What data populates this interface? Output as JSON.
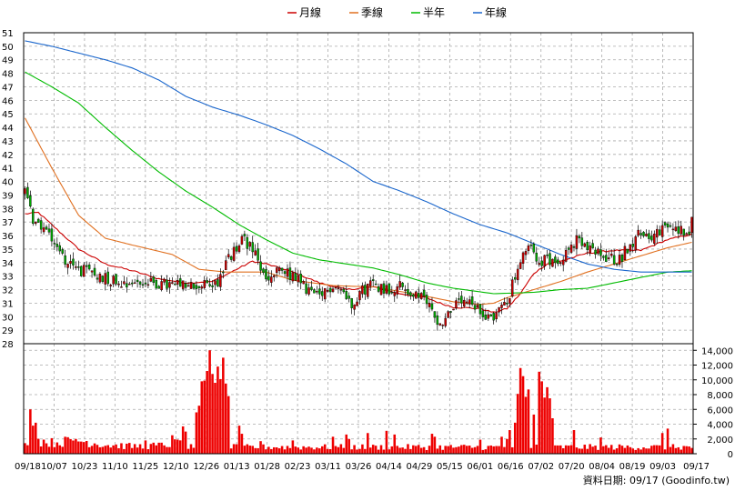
{
  "chart_data": {
    "type": "candlestick",
    "legend": {
      "placement": "top-center",
      "entries": [
        {
          "key": "ma_month",
          "label": "月線",
          "color": "#cc0000"
        },
        {
          "key": "ma_quarter",
          "label": "季線",
          "color": "#e07020"
        },
        {
          "key": "ma_half",
          "label": "半年",
          "color": "#00bb00"
        },
        {
          "key": "ma_year",
          "label": "年線",
          "color": "#1a66cc"
        }
      ]
    },
    "colors": {
      "up": "#cc0000",
      "down": "#00aa00",
      "volume": "#ee0000",
      "grid": "#aaaaaa"
    },
    "price_axis": {
      "min": 28,
      "max": 51,
      "ticks": [
        28,
        29,
        30,
        31,
        32,
        33,
        34,
        35,
        36,
        37,
        38,
        39,
        40,
        41,
        42,
        43,
        44,
        45,
        46,
        47,
        48,
        49,
        50,
        51
      ]
    },
    "volume_axis": {
      "min": 0,
      "max": 14000,
      "ticks": [
        0,
        2000,
        4000,
        6000,
        8000,
        10000,
        12000,
        14000
      ],
      "tick_labels": [
        "0",
        "2,000",
        "4,000",
        "6,000",
        "8,000",
        "10,000",
        "12,000",
        "14,000"
      ]
    },
    "x_tick_labels": [
      "09/18",
      "10/07",
      "10/23",
      "11/10",
      "11/25",
      "12/10",
      "12/26",
      "01/13",
      "01/28",
      "02/23",
      "03/11",
      "03/26",
      "04/14",
      "04/29",
      "05/15",
      "06/01",
      "06/16",
      "07/02",
      "07/20",
      "08/04",
      "08/19",
      "09/03",
      "09/17"
    ],
    "n_sessions": 250,
    "price_keypoints": [
      [
        0,
        39.2
      ],
      [
        3,
        37.2
      ],
      [
        10,
        36.0
      ],
      [
        14,
        34.5
      ],
      [
        18,
        33.6
      ],
      [
        25,
        33.2
      ],
      [
        35,
        32.6
      ],
      [
        45,
        32.5
      ],
      [
        55,
        32.3
      ],
      [
        65,
        32.2
      ],
      [
        72,
        32.6
      ],
      [
        75,
        34.0
      ],
      [
        80,
        35.3
      ],
      [
        82,
        35.8
      ],
      [
        86,
        34.5
      ],
      [
        90,
        32.6
      ],
      [
        95,
        33.4
      ],
      [
        100,
        33.0
      ],
      [
        105,
        32.1
      ],
      [
        110,
        31.3
      ],
      [
        115,
        32.4
      ],
      [
        118,
        32.0
      ],
      [
        122,
        31.0
      ],
      [
        125,
        31.8
      ],
      [
        130,
        32.5
      ],
      [
        135,
        32.0
      ],
      [
        140,
        32.3
      ],
      [
        145,
        31.6
      ],
      [
        150,
        31.2
      ],
      [
        155,
        29.4
      ],
      [
        160,
        30.8
      ],
      [
        165,
        31.0
      ],
      [
        170,
        30.3
      ],
      [
        175,
        30.0
      ],
      [
        180,
        31.2
      ],
      [
        184,
        33.5
      ],
      [
        188,
        35.2
      ],
      [
        192,
        34.2
      ],
      [
        197,
        34.1
      ],
      [
        202,
        34.7
      ],
      [
        206,
        35.6
      ],
      [
        210,
        35.0
      ],
      [
        214,
        34.6
      ],
      [
        218,
        34.3
      ],
      [
        222,
        34.2
      ],
      [
        226,
        35.4
      ],
      [
        230,
        36.2
      ],
      [
        235,
        36.0
      ],
      [
        240,
        36.6
      ],
      [
        245,
        36.4
      ],
      [
        248,
        36.5
      ],
      [
        249,
        37.0
      ]
    ],
    "volume_keypoints": [
      [
        0,
        2100
      ],
      [
        10,
        1500
      ],
      [
        20,
        1800
      ],
      [
        30,
        1200
      ],
      [
        40,
        1000
      ],
      [
        50,
        1100
      ],
      [
        58,
        1500
      ],
      [
        60,
        1200
      ],
      [
        62,
        900
      ],
      [
        70,
        900
      ]
    ],
    "volume_spikes": [
      [
        2,
        6000
      ],
      [
        3,
        3800
      ],
      [
        4,
        4200
      ],
      [
        19,
        2000
      ],
      [
        45,
        1800
      ],
      [
        55,
        2500
      ],
      [
        59,
        3700
      ],
      [
        60,
        3000
      ],
      [
        64,
        5600
      ],
      [
        65,
        6500
      ],
      [
        66,
        9800
      ],
      [
        67,
        9900
      ],
      [
        68,
        11200
      ],
      [
        69,
        14000
      ],
      [
        70,
        10800
      ],
      [
        71,
        9600
      ],
      [
        72,
        11800
      ],
      [
        73,
        10100
      ],
      [
        74,
        13000
      ],
      [
        75,
        9500
      ],
      [
        76,
        7800
      ],
      [
        80,
        3800
      ],
      [
        81,
        2700
      ],
      [
        88,
        1700
      ],
      [
        100,
        1800
      ],
      [
        115,
        2300
      ],
      [
        120,
        2600
      ],
      [
        121,
        2000
      ],
      [
        128,
        2800
      ],
      [
        135,
        3100
      ],
      [
        138,
        2600
      ],
      [
        152,
        2700
      ],
      [
        153,
        2300
      ],
      [
        170,
        1900
      ],
      [
        178,
        2300
      ],
      [
        180,
        2000
      ],
      [
        181,
        3200
      ],
      [
        183,
        4200
      ],
      [
        184,
        8100
      ],
      [
        185,
        11600
      ],
      [
        186,
        10500
      ],
      [
        187,
        7700
      ],
      [
        188,
        8700
      ],
      [
        190,
        5300
      ],
      [
        192,
        11100
      ],
      [
        193,
        9800
      ],
      [
        194,
        7600
      ],
      [
        195,
        9000
      ],
      [
        196,
        7500
      ],
      [
        197,
        4800
      ],
      [
        205,
        3200
      ],
      [
        215,
        2200
      ],
      [
        238,
        2800
      ],
      [
        240,
        3400
      ]
    ],
    "ma_series": [
      {
        "key": "ma_month",
        "keypoints": [
          [
            0,
            37.6
          ],
          [
            5,
            37.7
          ],
          [
            10,
            36.8
          ],
          [
            20,
            35.0
          ],
          [
            30,
            33.9
          ],
          [
            40,
            33.4
          ],
          [
            50,
            32.8
          ],
          [
            60,
            32.5
          ],
          [
            70,
            32.6
          ],
          [
            75,
            33.1
          ],
          [
            80,
            33.6
          ],
          [
            85,
            34.1
          ],
          [
            90,
            33.9
          ],
          [
            100,
            33.3
          ],
          [
            110,
            32.5
          ],
          [
            120,
            32.0
          ],
          [
            130,
            32.2
          ],
          [
            140,
            31.7
          ],
          [
            150,
            31.4
          ],
          [
            155,
            31.0
          ],
          [
            160,
            30.7
          ],
          [
            170,
            30.6
          ],
          [
            175,
            30.3
          ],
          [
            180,
            30.6
          ],
          [
            185,
            31.7
          ],
          [
            190,
            33.2
          ],
          [
            195,
            33.9
          ],
          [
            200,
            34.1
          ],
          [
            210,
            34.7
          ],
          [
            220,
            34.9
          ],
          [
            230,
            34.9
          ],
          [
            240,
            35.7
          ],
          [
            249,
            36.1
          ]
        ]
      },
      {
        "key": "ma_quarter",
        "keypoints": [
          [
            0,
            44.7
          ],
          [
            10,
            41.0
          ],
          [
            20,
            37.5
          ],
          [
            30,
            35.8
          ],
          [
            40,
            35.3
          ],
          [
            55,
            34.6
          ],
          [
            65,
            33.5
          ],
          [
            75,
            33.3
          ],
          [
            90,
            33.3
          ],
          [
            100,
            32.7
          ],
          [
            115,
            32.3
          ],
          [
            130,
            32.2
          ],
          [
            145,
            31.7
          ],
          [
            160,
            31.1
          ],
          [
            170,
            30.9
          ],
          [
            175,
            31.0
          ],
          [
            180,
            31.4
          ],
          [
            190,
            32.0
          ],
          [
            200,
            32.6
          ],
          [
            210,
            33.3
          ],
          [
            220,
            33.9
          ],
          [
            230,
            34.5
          ],
          [
            240,
            35.1
          ],
          [
            249,
            35.5
          ]
        ]
      },
      {
        "key": "ma_half",
        "keypoints": [
          [
            0,
            48.1
          ],
          [
            10,
            47.0
          ],
          [
            20,
            45.8
          ],
          [
            30,
            44.0
          ],
          [
            40,
            42.3
          ],
          [
            50,
            40.7
          ],
          [
            60,
            39.3
          ],
          [
            70,
            38.1
          ],
          [
            80,
            36.8
          ],
          [
            90,
            35.7
          ],
          [
            100,
            34.7
          ],
          [
            110,
            34.2
          ],
          [
            120,
            33.9
          ],
          [
            130,
            33.6
          ],
          [
            140,
            33.1
          ],
          [
            150,
            32.5
          ],
          [
            160,
            32.1
          ],
          [
            175,
            31.7
          ],
          [
            190,
            31.8
          ],
          [
            200,
            32.0
          ],
          [
            210,
            32.1
          ],
          [
            220,
            32.5
          ],
          [
            230,
            32.9
          ],
          [
            240,
            33.3
          ],
          [
            249,
            33.4
          ]
        ]
      },
      {
        "key": "ma_year",
        "keypoints": [
          [
            0,
            50.4
          ],
          [
            10,
            50.0
          ],
          [
            20,
            49.5
          ],
          [
            30,
            49.0
          ],
          [
            40,
            48.4
          ],
          [
            50,
            47.5
          ],
          [
            60,
            46.3
          ],
          [
            70,
            45.5
          ],
          [
            80,
            44.9
          ],
          [
            90,
            44.2
          ],
          [
            100,
            43.4
          ],
          [
            110,
            42.4
          ],
          [
            120,
            41.3
          ],
          [
            130,
            40.0
          ],
          [
            140,
            39.3
          ],
          [
            150,
            38.5
          ],
          [
            160,
            37.6
          ],
          [
            170,
            36.8
          ],
          [
            180,
            36.2
          ],
          [
            190,
            35.4
          ],
          [
            200,
            34.6
          ],
          [
            210,
            33.9
          ],
          [
            220,
            33.5
          ],
          [
            230,
            33.3
          ],
          [
            240,
            33.3
          ],
          [
            249,
            33.3
          ]
        ]
      }
    ],
    "footer_note": "資料日期: 09/17  (Goodinfo.tw)"
  }
}
